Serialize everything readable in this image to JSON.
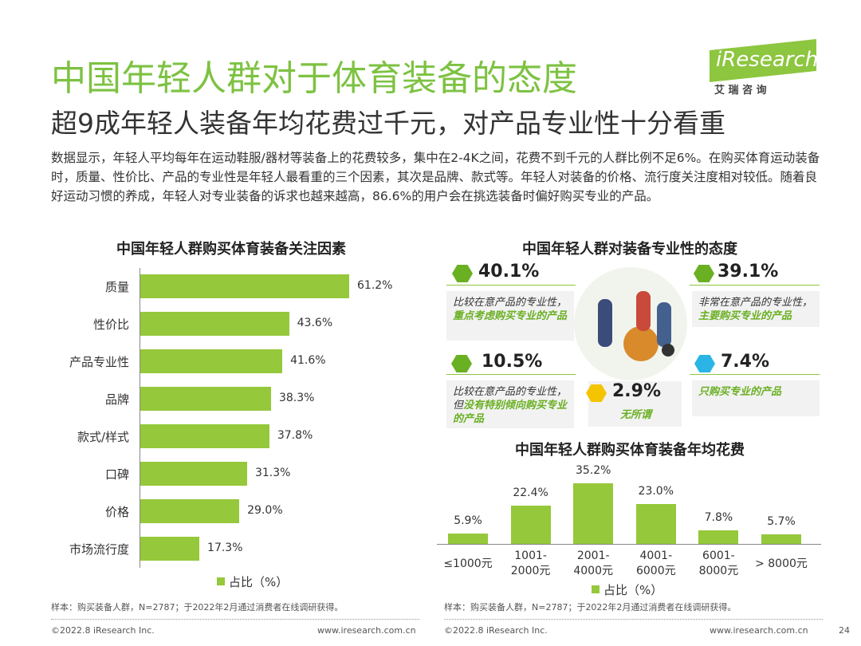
{
  "logo": {
    "brand": "iResearch",
    "tagline": "艾 瑞 咨 询"
  },
  "title": "中国年轻人群对于体育装备的态度",
  "subtitle": "超9成年轻人装备年均花费过千元，对产品专业性十分看重",
  "description": "数据显示，年轻人平均每年在运动鞋服/器材等装备上的花费较多，集中在2-4K之间，花费不到千元的人群比例不足6%。在购买体育运动装备时，质量、性价比、产品的专业性是年轻人最看重的三个因素，其次是品牌、款式等。年轻人对装备的价格、流行度关注度相对较低。随着良好运动习惯的养成，年轻人对专业装备的诉求也越来越高，86.6%的用户会在挑选装备时偏好购买专业的产品。",
  "chart_data": [
    {
      "type": "bar",
      "orientation": "horizontal",
      "title": "中国年轻人群购买体育装备关注因素",
      "categories": [
        "质量",
        "性价比",
        "产品专业性",
        "品牌",
        "款式/样式",
        "口碑",
        "价格",
        "市场流行度"
      ],
      "series": [
        {
          "name": "占比（%）",
          "color": "#95c83a",
          "values": [
            61.2,
            43.6,
            41.6,
            38.3,
            37.8,
            31.3,
            29.0,
            17.3
          ],
          "value_labels": [
            "61.2%",
            "43.6%",
            "41.6%",
            "38.3%",
            "37.8%",
            "31.3%",
            "29.0%",
            "17.3%"
          ]
        }
      ]
    },
    {
      "type": "bar",
      "orientation": "vertical",
      "title": "中国年轻人群购买体育装备年均花费",
      "categories": [
        "≤1000元",
        "1001-\n2000元",
        "2001-\n4000元",
        "4001-\n6000元",
        "6001-\n8000元",
        "> 8000元"
      ],
      "series": [
        {
          "name": "占比（%）",
          "color": "#95c83a",
          "values": [
            5.9,
            22.4,
            35.2,
            23.0,
            7.8,
            5.7
          ],
          "value_labels": [
            "5.9%",
            "22.4%",
            "35.2%",
            "23.0%",
            "7.8%",
            "5.7%"
          ]
        }
      ]
    }
  ],
  "attitude": {
    "title": "中国年轻人群对装备专业性的态度",
    "items": [
      {
        "value": "40.1%",
        "note": "比较在意产品的专业性，",
        "highlight": "重点考虑购买专业的产品",
        "color": "#6ab023"
      },
      {
        "value": "39.1%",
        "note": "非常在意产品的专业性，",
        "highlight": "主要购买专业的产品",
        "color": "#6ab023"
      },
      {
        "value": "10.5%",
        "note": "比较在意产品的专业性，但",
        "highlight": "没有特别倾向购买专业的产品",
        "color": "#6ab023"
      },
      {
        "value": "7.4%",
        "highlight": "只购买专业的产品",
        "color": "#2ab5e6"
      },
      {
        "value": "2.9%",
        "highlight": "无所谓",
        "color": "#f5c400"
      }
    ]
  },
  "notes": [
    "样本：购买装备人群，N=2787；于2022年2月通过消费者在线调研获得。",
    "样本：购买装备人群，N=2787；于2022年2月通过消费者在线调研获得。"
  ],
  "footer": {
    "copyright": [
      "©2022.8 iResearch Inc.",
      "©2022.8 iResearch Inc."
    ],
    "site": [
      "www.iresearch.com.cn",
      "www.iresearch.com.cn"
    ],
    "page": "24"
  }
}
